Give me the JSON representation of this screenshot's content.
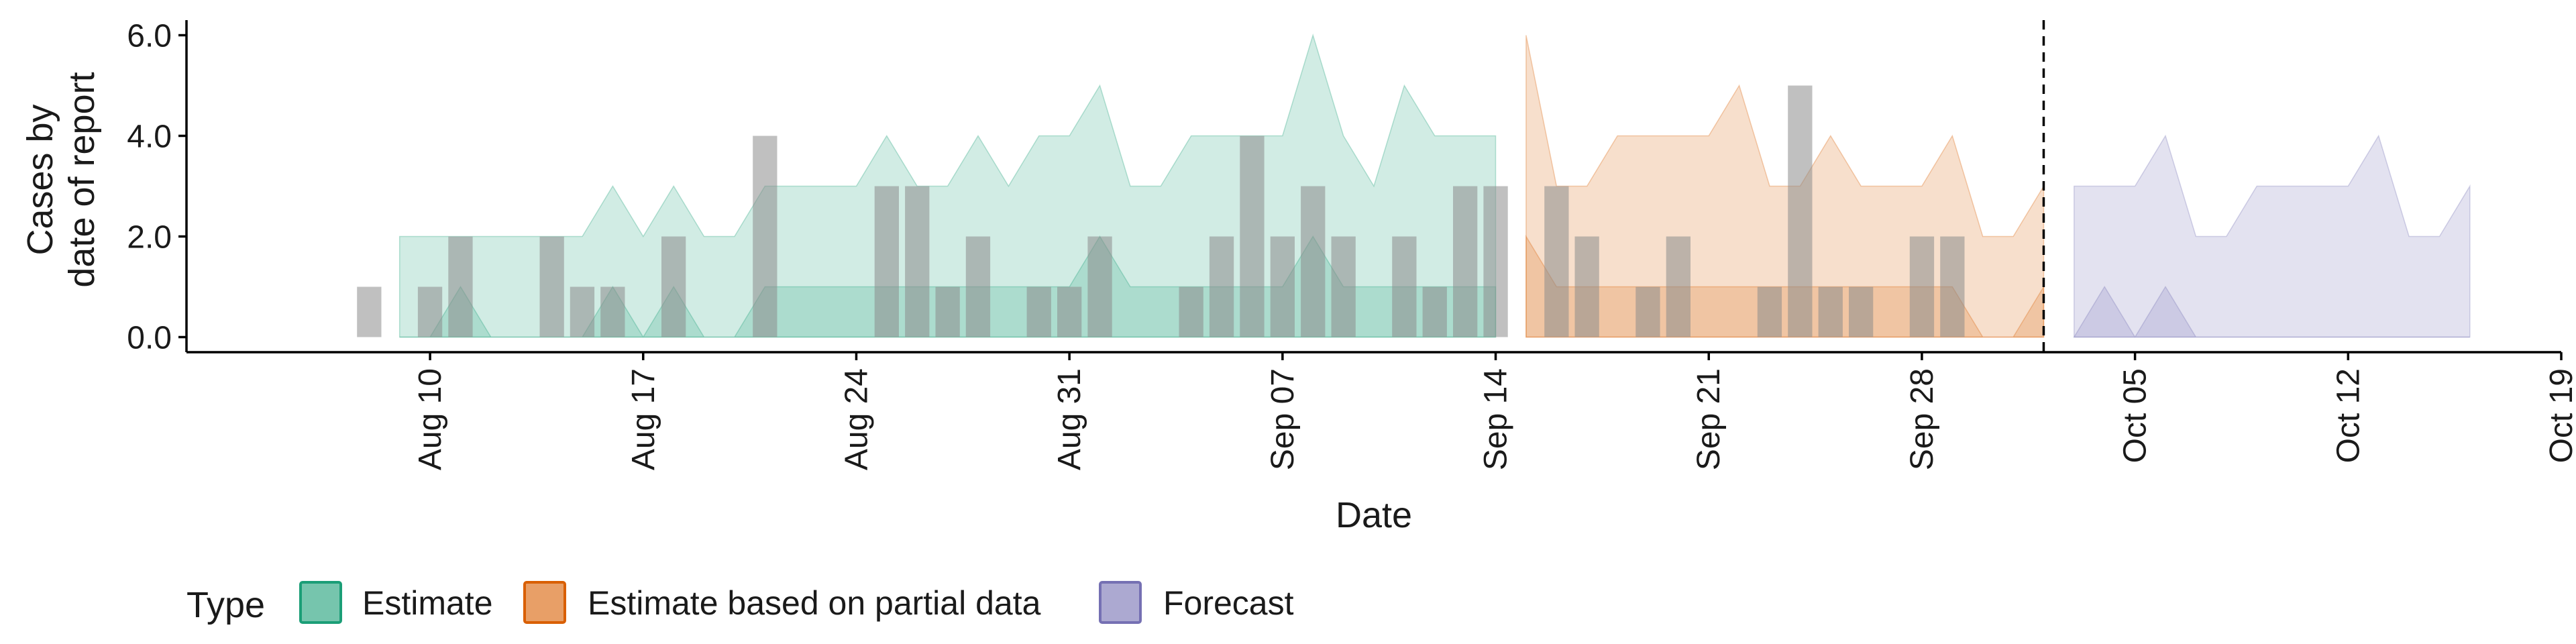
{
  "chart_data": {
    "type": "area",
    "xlabel": "Date",
    "ylabel_lines": [
      "Cases by",
      "date of report"
    ],
    "x_range": [
      "2020-08-02",
      "2020-10-19"
    ],
    "ylim": [
      -0.3,
      6.3
    ],
    "y_ticks": [
      0,
      2,
      4,
      6
    ],
    "y_tick_labels": [
      "0.0",
      "2.0",
      "4.0",
      "6.0"
    ],
    "x_ticks": [
      "2020-08-10",
      "2020-08-17",
      "2020-08-24",
      "2020-08-31",
      "2020-09-07",
      "2020-09-14",
      "2020-09-21",
      "2020-09-28",
      "2020-10-05",
      "2020-10-12",
      "2020-10-19"
    ],
    "x_tick_labels": [
      "Aug 10",
      "Aug 17",
      "Aug 24",
      "Aug 31",
      "Sep 07",
      "Sep 14",
      "Sep 21",
      "Sep 28",
      "Oct 05",
      "Oct 12",
      "Oct 19"
    ],
    "forecast_start": "2020-10-02",
    "grid": false,
    "legend": {
      "title": "Type",
      "position": "bottom",
      "items": [
        {
          "label": "Estimate",
          "color": "#1b9e77"
        },
        {
          "label": "Estimate based on partial data",
          "color": "#d95f02"
        },
        {
          "label": "Forecast",
          "color": "#7570b3"
        }
      ]
    },
    "reported_cases": [
      {
        "date": "2020-08-08",
        "value": 1
      },
      {
        "date": "2020-08-10",
        "value": 1
      },
      {
        "date": "2020-08-11",
        "value": 2
      },
      {
        "date": "2020-08-14",
        "value": 2
      },
      {
        "date": "2020-08-15",
        "value": 1
      },
      {
        "date": "2020-08-16",
        "value": 1
      },
      {
        "date": "2020-08-18",
        "value": 2
      },
      {
        "date": "2020-08-21",
        "value": 4
      },
      {
        "date": "2020-08-25",
        "value": 3
      },
      {
        "date": "2020-08-26",
        "value": 3
      },
      {
        "date": "2020-08-27",
        "value": 1
      },
      {
        "date": "2020-08-28",
        "value": 2
      },
      {
        "date": "2020-08-30",
        "value": 1
      },
      {
        "date": "2020-08-31",
        "value": 1
      },
      {
        "date": "2020-09-01",
        "value": 2
      },
      {
        "date": "2020-09-04",
        "value": 1
      },
      {
        "date": "2020-09-05",
        "value": 2
      },
      {
        "date": "2020-09-06",
        "value": 4
      },
      {
        "date": "2020-09-07",
        "value": 2
      },
      {
        "date": "2020-09-08",
        "value": 3
      },
      {
        "date": "2020-09-09",
        "value": 2
      },
      {
        "date": "2020-09-11",
        "value": 2
      },
      {
        "date": "2020-09-12",
        "value": 1
      },
      {
        "date": "2020-09-13",
        "value": 3
      },
      {
        "date": "2020-09-14",
        "value": 3
      },
      {
        "date": "2020-09-16",
        "value": 3
      },
      {
        "date": "2020-09-17",
        "value": 2
      },
      {
        "date": "2020-09-19",
        "value": 1
      },
      {
        "date": "2020-09-20",
        "value": 2
      },
      {
        "date": "2020-09-23",
        "value": 1
      },
      {
        "date": "2020-09-24",
        "value": 5
      },
      {
        "date": "2020-09-25",
        "value": 1
      },
      {
        "date": "2020-09-26",
        "value": 1
      },
      {
        "date": "2020-09-28",
        "value": 2
      },
      {
        "date": "2020-09-29",
        "value": 2
      }
    ],
    "series": [
      {
        "name": "Estimate",
        "color": "#1b9e77",
        "bands": [
          {
            "points": [
              [
                "2020-08-09",
                0,
                2
              ],
              [
                "2020-08-10",
                0,
                2
              ],
              [
                "2020-08-11",
                0,
                2
              ],
              [
                "2020-08-12",
                0,
                2
              ],
              [
                "2020-08-13",
                0,
                2
              ],
              [
                "2020-08-14",
                0,
                2
              ],
              [
                "2020-08-15",
                0,
                2
              ],
              [
                "2020-08-16",
                0,
                3
              ],
              [
                "2020-08-17",
                0,
                2
              ],
              [
                "2020-08-18",
                0,
                3
              ],
              [
                "2020-08-19",
                0,
                2
              ],
              [
                "2020-08-20",
                0,
                2
              ],
              [
                "2020-08-21",
                0,
                3
              ],
              [
                "2020-08-22",
                0,
                3
              ],
              [
                "2020-08-23",
                0,
                3
              ],
              [
                "2020-08-24",
                0,
                3
              ],
              [
                "2020-08-25",
                0,
                4
              ],
              [
                "2020-08-26",
                0,
                3
              ],
              [
                "2020-08-27",
                0,
                3
              ],
              [
                "2020-08-28",
                0,
                4
              ],
              [
                "2020-08-29",
                0,
                3
              ],
              [
                "2020-08-30",
                0,
                4
              ],
              [
                "2020-08-31",
                0,
                4
              ],
              [
                "2020-09-01",
                0,
                5
              ],
              [
                "2020-09-02",
                0,
                3
              ],
              [
                "2020-09-03",
                0,
                3
              ],
              [
                "2020-09-04",
                0,
                4
              ],
              [
                "2020-09-05",
                0,
                4
              ],
              [
                "2020-09-06",
                0,
                4
              ],
              [
                "2020-09-07",
                0,
                4
              ],
              [
                "2020-09-08",
                0,
                6
              ],
              [
                "2020-09-09",
                0,
                4
              ],
              [
                "2020-09-10",
                0,
                3
              ],
              [
                "2020-09-11",
                0,
                5
              ],
              [
                "2020-09-12",
                0,
                4
              ],
              [
                "2020-09-13",
                0,
                4
              ],
              [
                "2020-09-14",
                0,
                4
              ]
            ]
          },
          {
            "points": [
              [
                "2020-08-09",
                0,
                0
              ],
              [
                "2020-08-10",
                0,
                0
              ],
              [
                "2020-08-11",
                0,
                1
              ],
              [
                "2020-08-12",
                0,
                0
              ],
              [
                "2020-08-13",
                0,
                0
              ],
              [
                "2020-08-14",
                0,
                0
              ],
              [
                "2020-08-15",
                0,
                0
              ],
              [
                "2020-08-16",
                0,
                1
              ],
              [
                "2020-08-17",
                0,
                0
              ],
              [
                "2020-08-18",
                0,
                1
              ],
              [
                "2020-08-19",
                0,
                0
              ],
              [
                "2020-08-20",
                0,
                0
              ],
              [
                "2020-08-21",
                0,
                1
              ],
              [
                "2020-08-22",
                0,
                1
              ],
              [
                "2020-08-23",
                0,
                1
              ],
              [
                "2020-08-24",
                0,
                1
              ],
              [
                "2020-08-25",
                0,
                1
              ],
              [
                "2020-08-26",
                0,
                1
              ],
              [
                "2020-08-27",
                0,
                1
              ],
              [
                "2020-08-28",
                0,
                1
              ],
              [
                "2020-08-29",
                0,
                1
              ],
              [
                "2020-08-30",
                0,
                1
              ],
              [
                "2020-08-31",
                0,
                1
              ],
              [
                "2020-09-01",
                0,
                2
              ],
              [
                "2020-09-02",
                0,
                1
              ],
              [
                "2020-09-03",
                0,
                1
              ],
              [
                "2020-09-04",
                0,
                1
              ],
              [
                "2020-09-05",
                0,
                1
              ],
              [
                "2020-09-06",
                0,
                1
              ],
              [
                "2020-09-07",
                0,
                1
              ],
              [
                "2020-09-08",
                0,
                2
              ],
              [
                "2020-09-09",
                0,
                1
              ],
              [
                "2020-09-10",
                0,
                1
              ],
              [
                "2020-09-11",
                0,
                1
              ],
              [
                "2020-09-12",
                0,
                1
              ],
              [
                "2020-09-13",
                0,
                1
              ],
              [
                "2020-09-14",
                0,
                1
              ]
            ]
          }
        ]
      },
      {
        "name": "Estimate based on partial data",
        "color": "#d95f02",
        "bands": [
          {
            "points": [
              [
                "2020-09-15",
                0,
                6
              ],
              [
                "2020-09-16",
                0,
                3
              ],
              [
                "2020-09-17",
                0,
                3
              ],
              [
                "2020-09-18",
                0,
                4
              ],
              [
                "2020-09-19",
                0,
                4
              ],
              [
                "2020-09-20",
                0,
                4
              ],
              [
                "2020-09-21",
                0,
                4
              ],
              [
                "2020-09-22",
                0,
                5
              ],
              [
                "2020-09-23",
                0,
                3
              ],
              [
                "2020-09-24",
                0,
                3
              ],
              [
                "2020-09-25",
                0,
                4
              ],
              [
                "2020-09-26",
                0,
                3
              ],
              [
                "2020-09-27",
                0,
                3
              ],
              [
                "2020-09-28",
                0,
                3
              ],
              [
                "2020-09-29",
                0,
                4
              ],
              [
                "2020-09-30",
                0,
                2
              ],
              [
                "2020-10-01",
                0,
                2
              ],
              [
                "2020-10-02",
                0,
                3
              ]
            ]
          },
          {
            "points": [
              [
                "2020-09-15",
                0,
                2
              ],
              [
                "2020-09-16",
                0,
                1
              ],
              [
                "2020-09-17",
                0,
                1
              ],
              [
                "2020-09-18",
                0,
                1
              ],
              [
                "2020-09-19",
                0,
                1
              ],
              [
                "2020-09-20",
                0,
                1
              ],
              [
                "2020-09-21",
                0,
                1
              ],
              [
                "2020-09-22",
                0,
                1
              ],
              [
                "2020-09-23",
                0,
                1
              ],
              [
                "2020-09-24",
                0,
                1
              ],
              [
                "2020-09-25",
                0,
                1
              ],
              [
                "2020-09-26",
                0,
                1
              ],
              [
                "2020-09-27",
                0,
                1
              ],
              [
                "2020-09-28",
                0,
                1
              ],
              [
                "2020-09-29",
                0,
                1
              ],
              [
                "2020-09-30",
                0,
                0
              ],
              [
                "2020-10-01",
                0,
                0
              ],
              [
                "2020-10-02",
                0,
                1
              ]
            ]
          }
        ]
      },
      {
        "name": "Forecast",
        "color": "#7570b3",
        "bands": [
          {
            "points": [
              [
                "2020-10-03",
                0,
                3
              ],
              [
                "2020-10-04",
                0,
                3
              ],
              [
                "2020-10-05",
                0,
                3
              ],
              [
                "2020-10-06",
                0,
                4
              ],
              [
                "2020-10-07",
                0,
                2
              ],
              [
                "2020-10-08",
                0,
                2
              ],
              [
                "2020-10-09",
                0,
                3
              ],
              [
                "2020-10-10",
                0,
                3
              ],
              [
                "2020-10-11",
                0,
                3
              ],
              [
                "2020-10-12",
                0,
                3
              ],
              [
                "2020-10-13",
                0,
                4
              ],
              [
                "2020-10-14",
                0,
                2
              ],
              [
                "2020-10-15",
                0,
                2
              ],
              [
                "2020-10-16",
                0,
                3
              ]
            ]
          },
          {
            "points": [
              [
                "2020-10-03",
                0,
                0
              ],
              [
                "2020-10-04",
                0,
                1
              ],
              [
                "2020-10-05",
                0,
                0
              ],
              [
                "2020-10-06",
                0,
                1
              ],
              [
                "2020-10-07",
                0,
                0
              ],
              [
                "2020-10-08",
                0,
                0
              ],
              [
                "2020-10-09",
                0,
                0
              ],
              [
                "2020-10-10",
                0,
                0
              ],
              [
                "2020-10-11",
                0,
                0
              ],
              [
                "2020-10-12",
                0,
                0
              ],
              [
                "2020-10-13",
                0,
                0
              ],
              [
                "2020-10-14",
                0,
                0
              ],
              [
                "2020-10-15",
                0,
                0
              ],
              [
                "2020-10-16",
                0,
                0
              ]
            ]
          }
        ]
      }
    ]
  }
}
